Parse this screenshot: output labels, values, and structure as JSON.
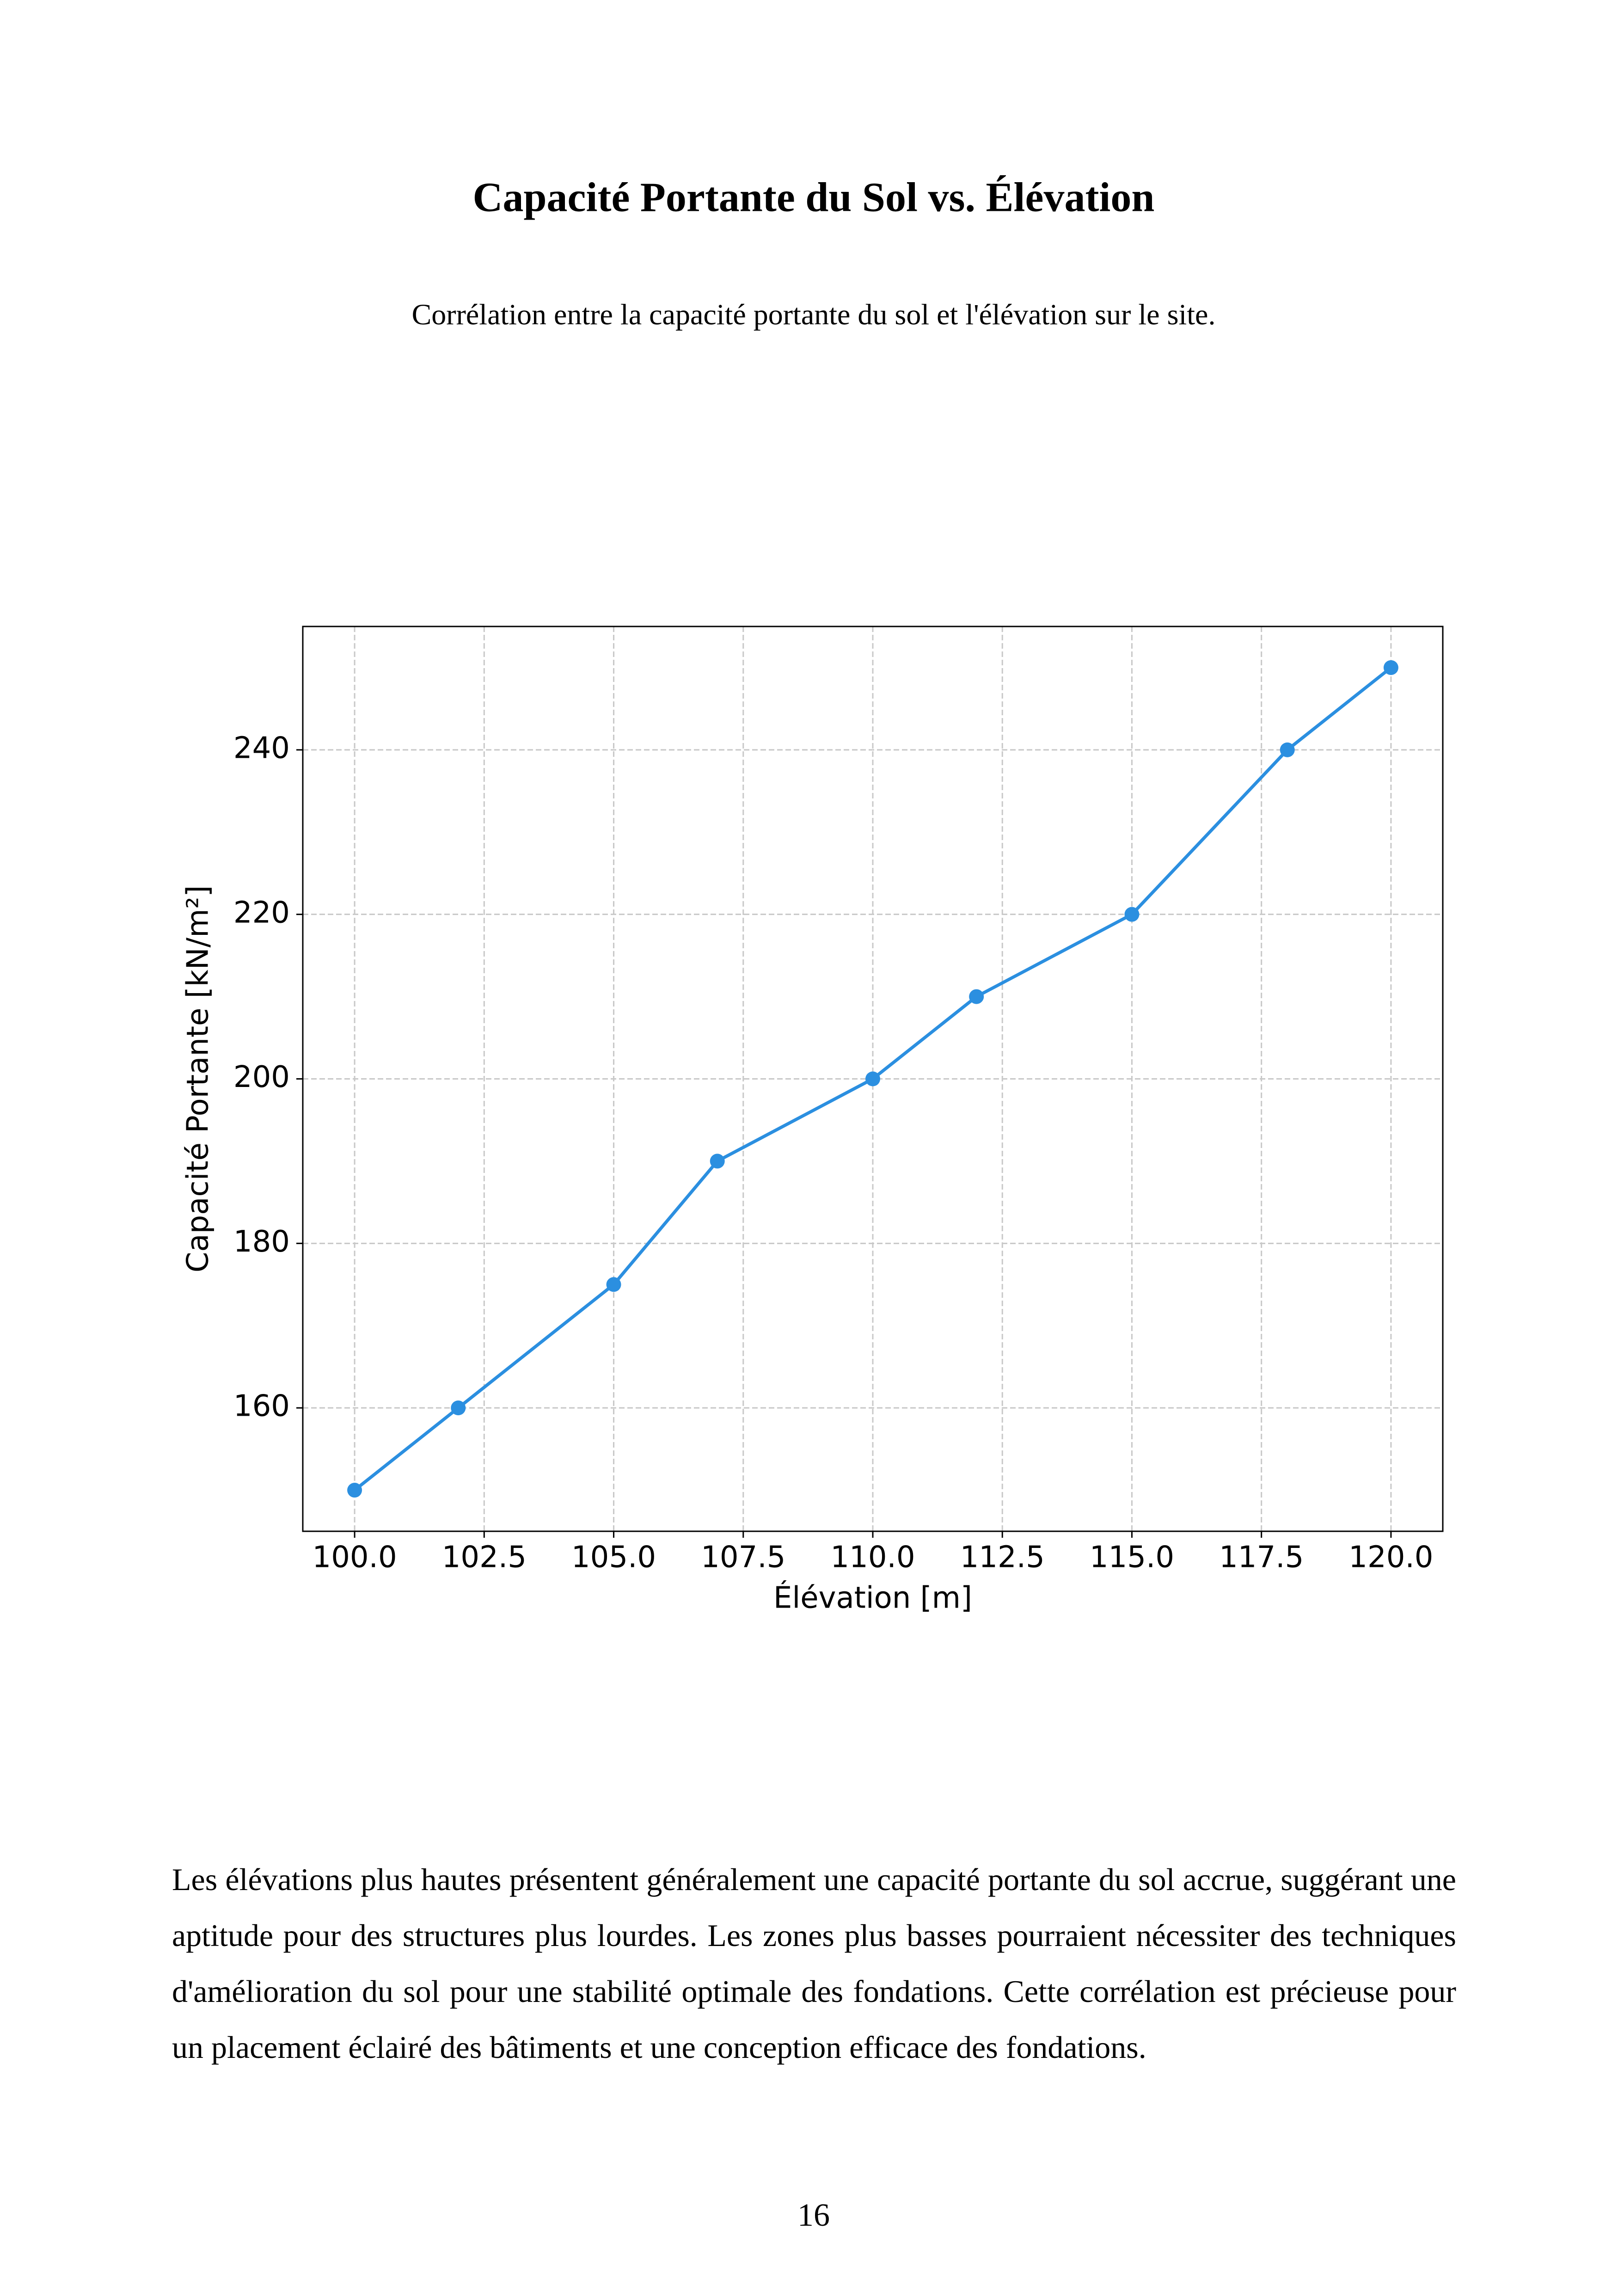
{
  "title": "Capacité Portante du Sol vs. Élévation",
  "subtitle": "Corrélation entre la capacité portante du sol et l'élévation sur le site.",
  "chart_data": {
    "type": "line",
    "xlabel": "Élévation [m]",
    "ylabel": "Capacité Portante [kN/m²]",
    "x": [
      100,
      102,
      105,
      107,
      110,
      112,
      115,
      118,
      120
    ],
    "series": [
      {
        "color": "#2b8fe0",
        "values": [
          150,
          160,
          175,
          190,
          200,
          210,
          220,
          240,
          250
        ]
      }
    ],
    "xlim": [
      99,
      121
    ],
    "ylim": [
      145,
      255
    ],
    "xticks": [
      {
        "value": 100,
        "label": "100.0"
      },
      {
        "value": 102.5,
        "label": "102.5"
      },
      {
        "value": 105,
        "label": "105.0"
      },
      {
        "value": 107.5,
        "label": "107.5"
      },
      {
        "value": 110,
        "label": "110.0"
      },
      {
        "value": 112.5,
        "label": "112.5"
      },
      {
        "value": 115,
        "label": "115.0"
      },
      {
        "value": 117.5,
        "label": "117.5"
      },
      {
        "value": 120,
        "label": "120.0"
      }
    ],
    "yticks": [
      160,
      180,
      200,
      220,
      240
    ],
    "grid": true
  },
  "paragraph": "Les élévations plus hautes présentent généralement une capacité portante du sol accrue, suggérant une aptitude pour des structures plus lourdes. Les zones plus basses pourraient nécessiter des techniques d'amélioration du sol pour une stabilité optimale des fondations. Cette corrélation est précieuse pour un placement éclairé des bâtiments et une conception efficace des fondations.",
  "page_number": "16"
}
